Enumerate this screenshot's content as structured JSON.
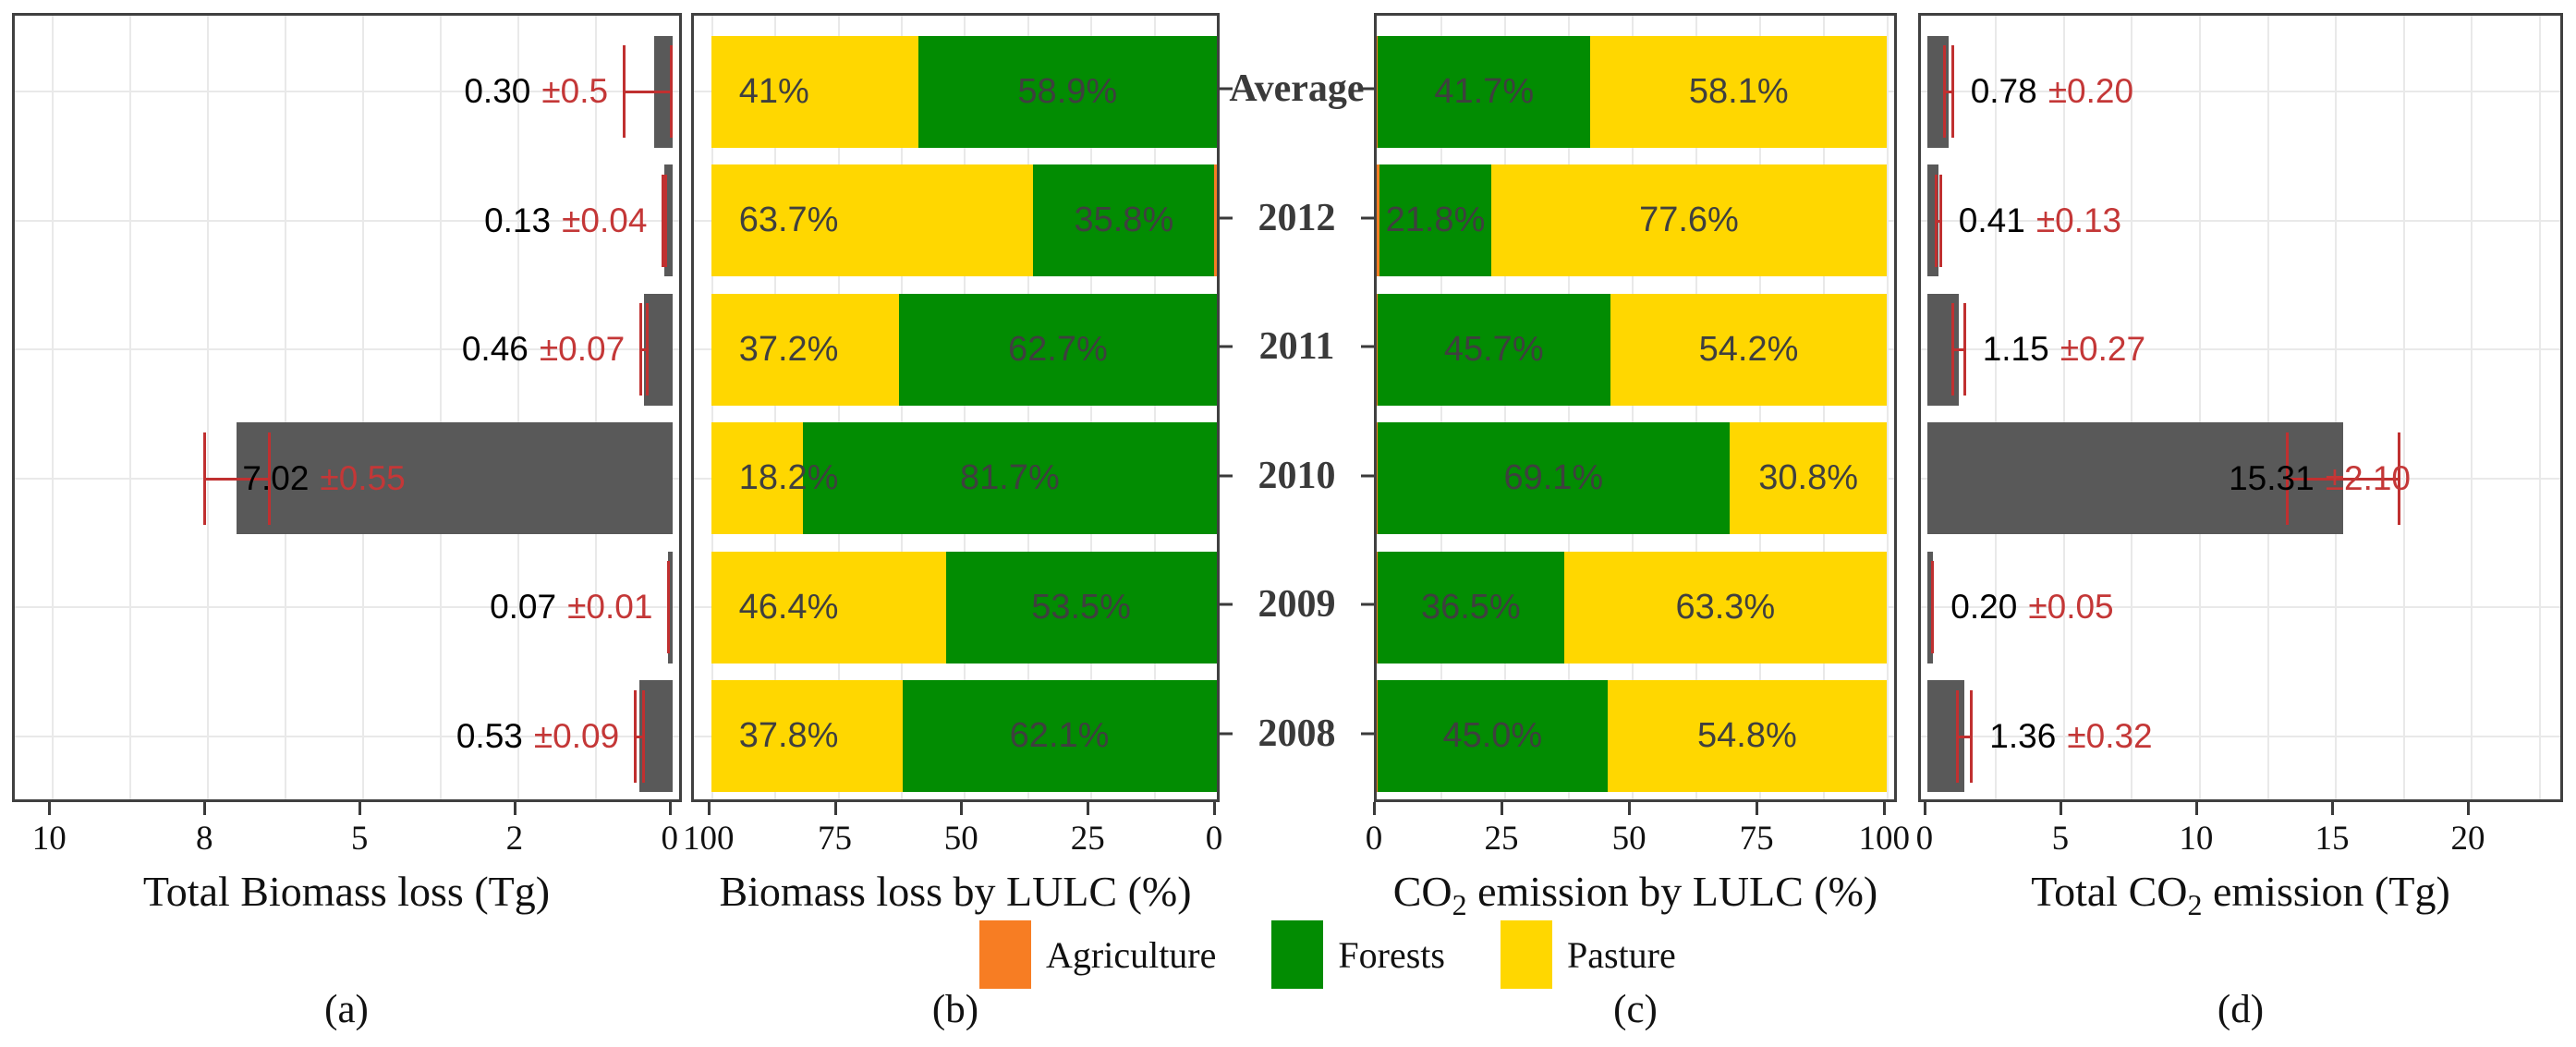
{
  "ui": {
    "center_categories": [
      "Average",
      "2012",
      "2011",
      "2010",
      "2009",
      "2008"
    ],
    "axis_titles": {
      "a": {
        "pre": "Total Biomass loss (Tg)",
        "sub": "",
        "post": ""
      },
      "b": {
        "pre": "Biomass loss by LULC (%)",
        "sub": "",
        "post": ""
      },
      "c": {
        "pre": "CO",
        "sub": "2",
        "post": " emission by LULC (%)"
      },
      "d": {
        "pre": "Total CO",
        "sub": "2",
        "post": " emission (Tg)"
      }
    },
    "panel_letters": {
      "a": "(a)",
      "b": "(b)",
      "c": "(c)",
      "d": "(d)"
    },
    "legend": [
      {
        "label": "Agriculture",
        "color": "#f77d23"
      },
      {
        "label": "Forests",
        "color": "#028c02"
      },
      {
        "label": "Pasture",
        "color": "#ffd700"
      }
    ],
    "colors": {
      "total_bar": "#595959",
      "error_bar": "#c03030",
      "error_text": "#c43737",
      "agriculture": "#f77d23",
      "forests": "#028c02",
      "pasture": "#ffd700"
    }
  },
  "chart_data": [
    {
      "id": "a",
      "type": "bar",
      "orientation": "horizontal",
      "axis_reversed": true,
      "title": "Total Biomass loss (Tg)",
      "panel_label": "(a)",
      "categories": [
        "Average",
        "2012",
        "2011",
        "2010",
        "2009",
        "2008"
      ],
      "values": [
        0.3,
        0.13,
        0.46,
        7.02,
        0.07,
        0.53
      ],
      "errors": [
        0.5,
        0.04,
        0.07,
        0.55,
        0.01,
        0.09
      ],
      "value_labels": [
        "0.30",
        "0.13",
        "0.46",
        "7.02",
        "0.07",
        "0.53"
      ],
      "error_labels": [
        "±0.5",
        "±0.04",
        "±0.07",
        "±0.55",
        "±0.01",
        "±0.09"
      ],
      "x_ticks": [
        {
          "value": 10,
          "label": "10"
        },
        {
          "value": 7.5,
          "label": "8"
        },
        {
          "value": 5,
          "label": "5"
        },
        {
          "value": 2.5,
          "label": "2"
        },
        {
          "value": 0,
          "label": "0"
        }
      ],
      "xlim": [
        10.6,
        0
      ],
      "grid": true
    },
    {
      "id": "b",
      "type": "stacked-bar",
      "orientation": "horizontal",
      "axis_reversed": true,
      "title": "Biomass loss by LULC (%)",
      "panel_label": "(b)",
      "categories": [
        "Average",
        "2012",
        "2011",
        "2010",
        "2009",
        "2008"
      ],
      "series": [
        {
          "name": "Agriculture",
          "values": [
            0.1,
            0.5,
            0.1,
            0.1,
            0.1,
            0.1
          ],
          "labels": [
            "",
            "",
            "",
            "",
            "",
            ""
          ]
        },
        {
          "name": "Forests",
          "values": [
            58.9,
            35.8,
            62.7,
            81.7,
            53.5,
            62.1
          ],
          "labels": [
            "58.9%",
            "35.8%",
            "62.7%",
            "81.7%",
            "53.5%",
            "62.1%"
          ]
        },
        {
          "name": "Pasture",
          "values": [
            41,
            63.7,
            37.2,
            18.2,
            46.4,
            37.8
          ],
          "labels": [
            "41%",
            "63.7%",
            "37.2%",
            "18.2%",
            "46.4%",
            "37.8%"
          ]
        }
      ],
      "x_ticks": [
        {
          "value": 100,
          "label": "100"
        },
        {
          "value": 75,
          "label": "75"
        },
        {
          "value": 50,
          "label": "50"
        },
        {
          "value": 25,
          "label": "25"
        },
        {
          "value": 0,
          "label": "0"
        }
      ],
      "xlim": [
        100,
        0
      ],
      "grid": true
    },
    {
      "id": "c",
      "type": "stacked-bar",
      "orientation": "horizontal",
      "axis_reversed": false,
      "title": "CO2 emission by LULC (%)",
      "panel_label": "(c)",
      "categories": [
        "Average",
        "2012",
        "2011",
        "2010",
        "2009",
        "2008"
      ],
      "series": [
        {
          "name": "Agriculture",
          "values": [
            0.2,
            0.6,
            0.1,
            0.1,
            0.2,
            0.2
          ],
          "labels": [
            "",
            "",
            "",
            "",
            "",
            ""
          ]
        },
        {
          "name": "Forests",
          "values": [
            41.7,
            21.8,
            45.7,
            69.1,
            36.5,
            45.0
          ],
          "labels": [
            "41.7%",
            "21.8%",
            "45.7%",
            "69.1%",
            "36.5%",
            "45.0%"
          ]
        },
        {
          "name": "Pasture",
          "values": [
            58.1,
            77.6,
            54.2,
            30.8,
            63.3,
            54.8
          ],
          "labels": [
            "58.1%",
            "77.6%",
            "54.2%",
            "30.8%",
            "63.3%",
            "54.8%"
          ]
        }
      ],
      "x_ticks": [
        {
          "value": 0,
          "label": "0"
        },
        {
          "value": 25,
          "label": "25"
        },
        {
          "value": 50,
          "label": "50"
        },
        {
          "value": 75,
          "label": "75"
        },
        {
          "value": 100,
          "label": "100"
        }
      ],
      "xlim": [
        0,
        100
      ],
      "grid": true
    },
    {
      "id": "d",
      "type": "bar",
      "orientation": "horizontal",
      "axis_reversed": false,
      "title": "Total CO2 emission (Tg)",
      "panel_label": "(d)",
      "categories": [
        "Average",
        "2012",
        "2011",
        "2010",
        "2009",
        "2008"
      ],
      "values": [
        0.78,
        0.41,
        1.15,
        15.31,
        0.2,
        1.36
      ],
      "errors": [
        0.2,
        0.13,
        0.27,
        2.1,
        0.05,
        0.32
      ],
      "value_labels": [
        "0.78",
        "0.41",
        "1.15",
        "15.31",
        "0.20",
        "1.36"
      ],
      "error_labels": [
        "±0.20",
        "±0.13",
        "±0.27",
        "±2.10",
        "±0.05",
        "±0.32"
      ],
      "x_ticks": [
        {
          "value": 0,
          "label": "0"
        },
        {
          "value": 5,
          "label": "5"
        },
        {
          "value": 10,
          "label": "10"
        },
        {
          "value": 15,
          "label": "15"
        },
        {
          "value": 20,
          "label": "20"
        }
      ],
      "xlim": [
        0,
        23.3
      ],
      "grid": true
    }
  ]
}
